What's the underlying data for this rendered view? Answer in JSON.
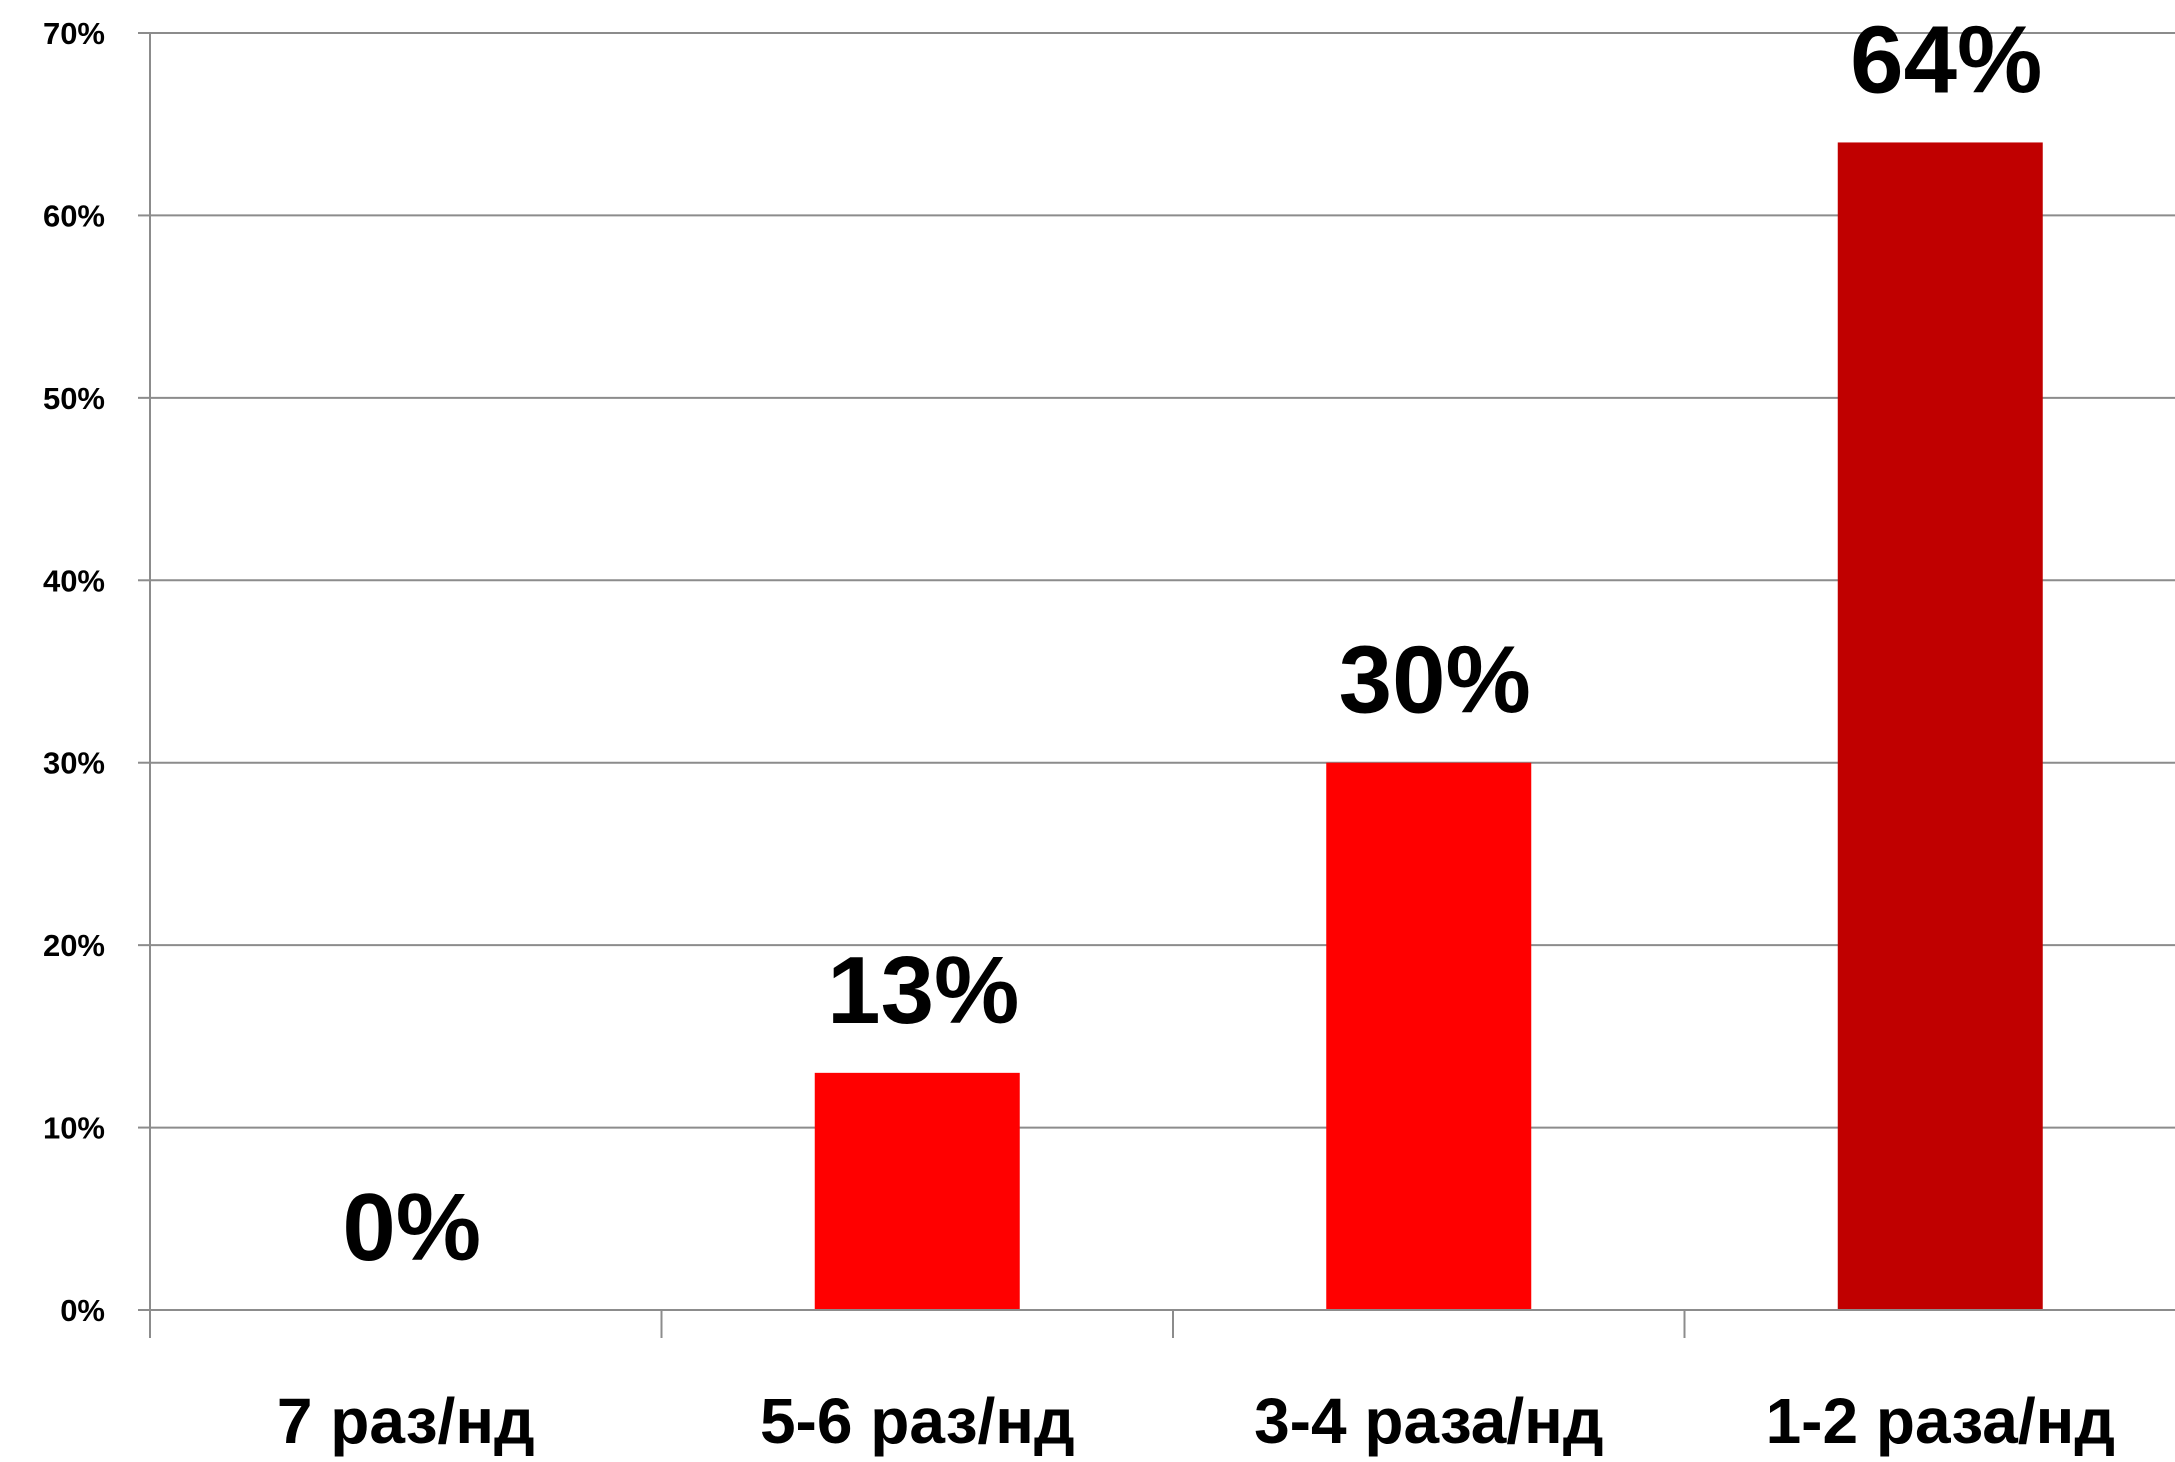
{
  "chart_data": {
    "type": "bar",
    "title": "",
    "xlabel": "",
    "ylabel": "",
    "categories": [
      "7 раз/нд",
      "5-6 раз/нд",
      "3-4 раза/нд",
      "1-2 раза/нд"
    ],
    "values": [
      0,
      13,
      30,
      64
    ],
    "data_labels": [
      "0%",
      "13%",
      "30%",
      "64%"
    ],
    "ylim": [
      0,
      70
    ],
    "yticks": [
      0,
      10,
      20,
      30,
      40,
      50,
      60,
      70
    ],
    "ytick_labels": [
      "0%",
      "10%",
      "20%",
      "30%",
      "40%",
      "50%",
      "60%",
      "70%"
    ],
    "grid": true,
    "legend": "none",
    "colors": [
      "#ff0000",
      "#ff0000",
      "#ff0000",
      "#c00000"
    ]
  }
}
